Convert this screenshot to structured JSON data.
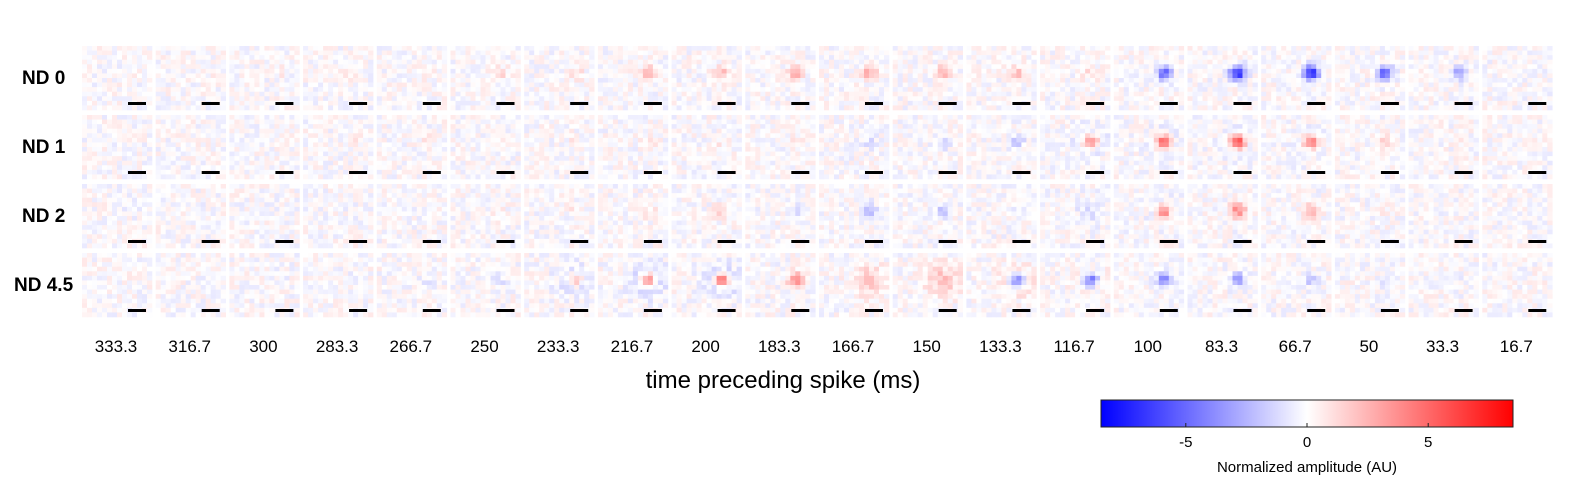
{
  "chart_data": {
    "type": "heatmap",
    "rows": [
      "ND 0",
      "ND 1",
      "ND 2",
      "ND 4.5"
    ],
    "columns": [
      "333.3",
      "316.7",
      "300",
      "283.3",
      "266.7",
      "250",
      "233.3",
      "216.7",
      "200",
      "183.3",
      "166.7",
      "150",
      "133.3",
      "116.7",
      "100",
      "83.3",
      "66.7",
      "50",
      "33.3",
      "16.7"
    ],
    "xlabel": "time preceding spike (ms)",
    "colorbar": {
      "label": "Normalized amplitude (AU)",
      "range": [
        -8.5,
        8.5
      ],
      "ticks": [
        -5,
        0,
        5
      ],
      "tick_labels": [
        "-5",
        "0",
        "5"
      ],
      "colors": {
        "min": "#0000ff",
        "mid": "#ffffff",
        "max": "#ff0000"
      }
    },
    "center_amplitude": [
      [
        0,
        0.3,
        0.4,
        0.8,
        1.0,
        1.2,
        1.5,
        2.2,
        2.4,
        2.6,
        2.8,
        2.6,
        2.0,
        1.2,
        -5.0,
        -7.5,
        -7.5,
        -5.5,
        -2.8,
        -0.3
      ],
      [
        0,
        0.3,
        0.4,
        0.5,
        0.5,
        0.5,
        0.5,
        0.6,
        0.6,
        0.4,
        -1.0,
        -1.5,
        -2.0,
        4.0,
        5.5,
        6.0,
        4.5,
        1.5,
        0.3,
        0
      ],
      [
        -0.3,
        -0.2,
        -0.3,
        -0.2,
        -0.2,
        0.2,
        0.5,
        0.8,
        1.4,
        -1.0,
        -2.0,
        -1.8,
        -1.0,
        -1.2,
        4.0,
        4.0,
        2.8,
        0.5,
        0.2,
        -0.2
      ],
      [
        0.3,
        -0.3,
        -0.3,
        -0.4,
        -0.5,
        -0.8,
        2.0,
        4.0,
        4.5,
        4.0,
        2.5,
        2.0,
        -4.0,
        -4.5,
        -4.0,
        -3.5,
        -2.0,
        -0.8,
        -0.3,
        0.3
      ]
    ],
    "surround_amplitude": [
      [
        0,
        0,
        0,
        0,
        0,
        0,
        0,
        0,
        0,
        0,
        0,
        0,
        0,
        0,
        0,
        0,
        0,
        0,
        0,
        0
      ],
      [
        0,
        0,
        0,
        0,
        0,
        0,
        0,
        0,
        0,
        0,
        0,
        0,
        0,
        -1.0,
        -0.8,
        -0.8,
        -0.6,
        0,
        0,
        0
      ],
      [
        0,
        0,
        0,
        0,
        0,
        0,
        0,
        0,
        0,
        0,
        0,
        0,
        0,
        -0.6,
        -0.5,
        0,
        0,
        0,
        0,
        0
      ],
      [
        0,
        0,
        0,
        0,
        0,
        0,
        -1.4,
        -2.0,
        -1.8,
        0,
        1.5,
        1.8,
        1.6,
        0.8,
        0,
        0,
        0,
        0,
        0,
        0
      ]
    ]
  }
}
